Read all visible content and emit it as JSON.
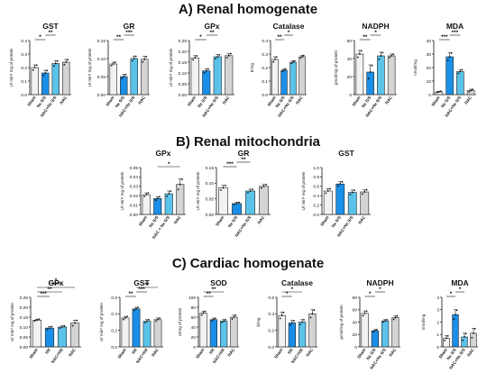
{
  "sections": [
    {
      "title": "A) Renal homogenate"
    },
    {
      "title": "B) Renal mitochondria"
    },
    {
      "title": "C) Cardiac homogenate"
    }
  ],
  "colors": {
    "sham": "#f2f2f2",
    "nxs": "#1a8fe8",
    "nacnxs": "#5bc3ea",
    "nac": "#d4d4d4",
    "outline": "#222222"
  },
  "chart_data": [
    {
      "id": "A-GST",
      "type": "bar",
      "title": "GST",
      "ylabel": "U/ min¹ mg of protein",
      "ylim": [
        0,
        0.4
      ],
      "yticks": [
        "0.0",
        "0.1",
        "0.2",
        "0.3",
        "0.4"
      ],
      "categories": [
        "Sham",
        "Nx S/S",
        "NAC+Nx S/S",
        "NAC"
      ],
      "values": [
        0.2,
        0.16,
        0.23,
        0.24
      ],
      "errors": [
        0.02,
        0.02,
        0.02,
        0.02
      ],
      "sig": [
        {
          "from": 0,
          "to": 1,
          "text": "*"
        },
        {
          "from": 1,
          "to": 2,
          "text": "**"
        }
      ]
    },
    {
      "id": "A-GR",
      "type": "bar",
      "title": "GR",
      "ylabel": "U/ min¹ mg of protein",
      "ylim": [
        0,
        0.15
      ],
      "yticks": [
        "0.00",
        "0.05",
        "0.10",
        "0.15"
      ],
      "categories": [
        "Sham",
        "Nx S/S",
        "NAC+Nx S/S",
        "NAC"
      ],
      "values": [
        0.085,
        0.05,
        0.1,
        0.098
      ],
      "errors": [
        0.005,
        0.006,
        0.007,
        0.008
      ],
      "sig": [
        {
          "from": 0,
          "to": 1,
          "text": "**"
        },
        {
          "from": 1,
          "to": 2,
          "text": "***"
        }
      ]
    },
    {
      "id": "A-GPx",
      "type": "bar",
      "title": "GPx",
      "ylabel": "U/ min¹ mg of protein",
      "ylim": [
        0,
        0.25
      ],
      "yticks": [
        "0.00",
        "0.05",
        "0.10",
        "0.15",
        "0.20",
        "0.25"
      ],
      "categories": [
        "Sham",
        "Nx S/S",
        "NAC+Nx S/S",
        "NAC"
      ],
      "values": [
        0.17,
        0.11,
        0.175,
        0.18
      ],
      "errors": [
        0.01,
        0.01,
        0.01,
        0.01
      ],
      "sig": [
        {
          "from": 0,
          "to": 1,
          "text": "*"
        },
        {
          "from": 1,
          "to": 2,
          "text": "**"
        }
      ]
    },
    {
      "id": "A-Catalase",
      "type": "bar",
      "title": "Catalase",
      "ylabel": "k/mg",
      "ylim": [
        0,
        0.4
      ],
      "yticks": [
        "0.0",
        "0.1",
        "0.2",
        "0.3",
        "0.4"
      ],
      "categories": [
        "Sham",
        "Nx S/S",
        "NAC+Nx S/S",
        "NAC"
      ],
      "values": [
        0.26,
        0.18,
        0.24,
        0.28
      ],
      "errors": [
        0.02,
        0.01,
        0.01,
        0.01
      ],
      "sig": [
        {
          "from": 0,
          "to": 1,
          "text": "**"
        },
        {
          "from": 1,
          "to": 2,
          "text": "*"
        }
      ]
    },
    {
      "id": "A-NADPH",
      "type": "bar",
      "title": "NADPH",
      "ylabel": "pmol/mg of protein",
      "ylim": [
        0,
        60
      ],
      "yticks": [
        "0",
        "20",
        "40",
        "60"
      ],
      "categories": [
        "Sham",
        "Nx S/S",
        "NAC+Nx S/S",
        "NAC"
      ],
      "values": [
        45,
        25,
        43,
        43
      ],
      "errors": [
        4,
        8,
        4,
        2
      ],
      "sig": [
        {
          "from": 0,
          "to": 1,
          "text": "**"
        },
        {
          "from": 1,
          "to": 2,
          "text": "*"
        }
      ]
    },
    {
      "id": "A-MDA",
      "type": "bar",
      "title": "MDA",
      "ylabel": "nmol/mg",
      "ylim": [
        0,
        40
      ],
      "yticks": [
        "0",
        "10",
        "20",
        "30",
        "40"
      ],
      "categories": [
        "Sham",
        "Nx S/S",
        "NAC+Nx S/S",
        "NAC"
      ],
      "values": [
        2,
        28,
        17,
        3
      ],
      "errors": [
        0.5,
        3,
        1.5,
        1
      ],
      "sig": [
        {
          "from": 0,
          "to": 1,
          "text": "***"
        },
        {
          "from": 1,
          "to": 2,
          "text": "***"
        }
      ]
    },
    {
      "id": "B-GPx",
      "type": "bar",
      "title": "GPx",
      "ylabel": "U/ min¹ mg of protein",
      "ylim": [
        0,
        0.05
      ],
      "yticks": [
        "0.00",
        "0.01",
        "0.02",
        "0.03",
        "0.04",
        "0.05"
      ],
      "categories": [
        "Sham",
        "Nx S/S",
        "NAC + Nx S/S",
        "NAC"
      ],
      "values": [
        0.021,
        0.017,
        0.022,
        0.032
      ],
      "errors": [
        0.002,
        0.002,
        0.003,
        0.006
      ],
      "sig": [
        {
          "from": 1,
          "to": 3,
          "text": "*"
        }
      ]
    },
    {
      "id": "B-GR",
      "type": "bar",
      "title": "GR",
      "ylabel": "U/ min¹ mg of protein",
      "ylim": [
        0,
        0.15
      ],
      "yticks": [
        "0.00",
        "0.05",
        "0.10",
        "0.15"
      ],
      "categories": [
        "Sham",
        "Nx S/S",
        "NAC+Nx S/S",
        "NAC"
      ],
      "values": [
        0.085,
        0.035,
        0.075,
        0.09
      ],
      "errors": [
        0.008,
        0.004,
        0.006,
        0.006
      ],
      "sig": [
        {
          "from": 0,
          "to": 1,
          "text": "***"
        },
        {
          "from": 1,
          "to": 2,
          "text": "**"
        }
      ]
    },
    {
      "id": "B-GST",
      "type": "bar",
      "title": "GST",
      "ylabel": "U/ min¹ mg of protein",
      "ylim": [
        0,
        1.0
      ],
      "yticks": [
        "0.0",
        "0.2",
        "0.4",
        "0.6",
        "0.8",
        "1.0"
      ],
      "categories": [
        "Sham",
        "Nx S/S",
        "NAC+Nx S/S",
        "NAC"
      ],
      "values": [
        0.5,
        0.65,
        0.47,
        0.48
      ],
      "errors": [
        0.05,
        0.05,
        0.05,
        0.05
      ],
      "sig": []
    },
    {
      "id": "C-GPx",
      "type": "bar",
      "title": "GPx",
      "ylabel": "U/ min¹ mg of protein",
      "ylim": [
        0,
        0.25
      ],
      "yticks": [
        "0.00",
        "0.05",
        "0.10",
        "0.15",
        "0.20",
        "0.25"
      ],
      "categories": [
        "Sham",
        "NX",
        "NAC+NX",
        "NAC"
      ],
      "values": [
        0.135,
        0.095,
        0.1,
        0.12
      ],
      "errors": [
        0.005,
        0.008,
        0.006,
        0.015
      ],
      "sig": [
        {
          "from": 0,
          "to": 1,
          "text": "***"
        },
        {
          "from": 0,
          "to": 2,
          "text": "**"
        },
        {
          "from": 0,
          "to": 3,
          "text": "***"
        },
        {
          "from": 1,
          "to": 2,
          "text": "*"
        }
      ]
    },
    {
      "id": "C-GST",
      "type": "bar",
      "title": "GST",
      "ylabel": "U/ min¹ mg of protein",
      "ylim": [
        0,
        0.6
      ],
      "yticks": [
        "0.0",
        "0.2",
        "0.4",
        "0.6"
      ],
      "categories": [
        "Sham",
        "NX",
        "NAC+NX",
        "NAC"
      ],
      "values": [
        0.35,
        0.46,
        0.31,
        0.33
      ],
      "errors": [
        0.02,
        0.02,
        0.02,
        0.02
      ],
      "sig": [
        {
          "from": 0,
          "to": 1,
          "text": "**"
        },
        {
          "from": 1,
          "to": 2,
          "text": "***"
        },
        {
          "from": 1,
          "to": 3,
          "text": "**"
        }
      ]
    },
    {
      "id": "C-SOD",
      "type": "bar",
      "title": "SOD",
      "ylabel": "U/mg of protein",
      "ylim": [
        0,
        100
      ],
      "yticks": [
        "0",
        "20",
        "40",
        "60",
        "80",
        "100"
      ],
      "categories": [
        "Sham",
        "NX",
        "NAC+NX",
        "NAC"
      ],
      "values": [
        68,
        55,
        52,
        60
      ],
      "errors": [
        4,
        3,
        3,
        4
      ],
      "sig": [
        {
          "from": 0,
          "to": 1,
          "text": "**"
        },
        {
          "from": 0,
          "to": 2,
          "text": "**"
        }
      ]
    },
    {
      "id": "C-Catalase",
      "type": "bar",
      "title": "Catalase",
      "ylabel": "k/mg",
      "ylim": [
        0,
        0.6
      ],
      "yticks": [
        "0.0",
        "0.2",
        "0.4",
        "0.6"
      ],
      "categories": [
        "Sham",
        "NX",
        "NAC+NX",
        "NAC"
      ],
      "values": [
        0.38,
        0.29,
        0.3,
        0.4
      ],
      "errors": [
        0.04,
        0.03,
        0.03,
        0.05
      ],
      "sig": [
        {
          "from": 0,
          "to": 1,
          "text": "*"
        },
        {
          "from": 0,
          "to": 2,
          "text": "*"
        }
      ]
    },
    {
      "id": "C-NADPH",
      "type": "bar",
      "title": "NADPH",
      "ylabel": "pmol/mg of protein",
      "ylim": [
        0,
        80
      ],
      "yticks": [
        "0",
        "20",
        "40",
        "60",
        "80"
      ],
      "categories": [
        "Sham",
        "Nx S/S",
        "NAC+Nx S/S",
        "NAC"
      ],
      "values": [
        54,
        26,
        42,
        47
      ],
      "errors": [
        4,
        2,
        2,
        3
      ],
      "sig": [
        {
          "from": 0,
          "to": 1,
          "text": "*"
        },
        {
          "from": 1,
          "to": 2,
          "text": "*"
        }
      ]
    },
    {
      "id": "C-MDA",
      "type": "bar",
      "title": "MDA",
      "ylabel": "nmol/mg",
      "ylim": [
        0,
        4
      ],
      "yticks": [
        "0",
        "1",
        "2",
        "3",
        "4"
      ],
      "categories": [
        "Sham",
        "Nx S/S",
        "NAC+Nx S/S",
        "NAC"
      ],
      "values": [
        0.7,
        2.6,
        0.8,
        1.1
      ],
      "errors": [
        0.2,
        0.4,
        0.3,
        0.4
      ],
      "sig": [
        {
          "from": 0,
          "to": 1,
          "text": "*"
        },
        {
          "from": 1,
          "to": 2,
          "text": "*"
        }
      ]
    }
  ]
}
